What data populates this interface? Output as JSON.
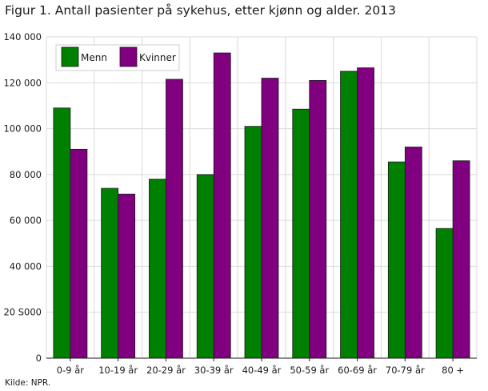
{
  "chart_data": {
    "type": "bar",
    "title": "Figur 1. Antall pasienter på sykehus, etter kjønn og alder. 2013",
    "source": "Kilde: NPR.",
    "xlabel": "",
    "ylabel": "",
    "categories": [
      "0-9 år",
      "10-19 år",
      "20-29 år",
      "30-39 år",
      "40-49 år",
      "50-59 år",
      "60-69 år",
      "70-79 år",
      "80 +"
    ],
    "series": [
      {
        "name": "Menn",
        "color": "#008000",
        "values": [
          109000,
          74000,
          78000,
          80000,
          101000,
          108500,
          125000,
          85500,
          56500
        ]
      },
      {
        "name": "Kvinner",
        "color": "#800080",
        "values": [
          91000,
          71500,
          121500,
          133000,
          122000,
          121000,
          126500,
          92000,
          86000
        ]
      }
    ],
    "ylim": [
      0,
      140000
    ],
    "yticks": [
      0,
      20000,
      40000,
      60000,
      80000,
      100000,
      120000,
      140000
    ],
    "ytick_labels": [
      "0",
      "20 S000",
      "40 000",
      "60 000",
      "80 000",
      "100 000",
      "120 000",
      "140 000"
    ],
    "grid": true,
    "legend_position": "top-left"
  }
}
